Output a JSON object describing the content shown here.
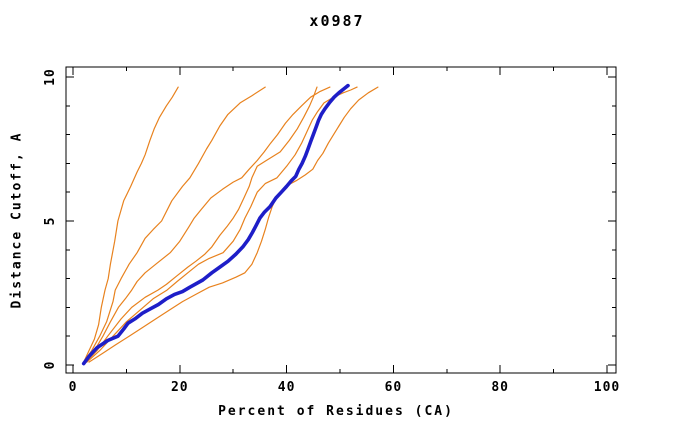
{
  "title": "x0987",
  "chart_data": {
    "type": "line",
    "title": "x0987",
    "xlabel": "Percent of Residues (CA)",
    "ylabel": "Distance Cutoff, A",
    "grid": false,
    "legend": null,
    "axes": {
      "x": {
        "range": [
          0,
          100
        ],
        "major": [
          0,
          20,
          40,
          60,
          80,
          100
        ],
        "minor": [
          10,
          30,
          50,
          70,
          90
        ]
      },
      "y": {
        "range": [
          0,
          10
        ],
        "major": [
          0,
          5,
          10
        ],
        "minor": [
          1,
          2,
          3,
          4,
          6,
          7,
          8,
          9
        ]
      }
    },
    "colors": {
      "alignment_orange": "#e8821e",
      "reference_blue": "#1e1ec8"
    },
    "series": [
      {
        "name": "orange-curve-1",
        "color": "#e8821e",
        "width": 1.2,
        "points": [
          [
            2,
            0.1
          ],
          [
            3,
            0.5
          ],
          [
            4,
            0.9
          ],
          [
            4.8,
            1.4
          ],
          [
            5.3,
            2.0
          ],
          [
            6,
            2.6
          ],
          [
            6.6,
            3.0
          ],
          [
            7,
            3.5
          ],
          [
            7.8,
            4.3
          ],
          [
            8.4,
            5.0
          ],
          [
            9.5,
            5.7
          ],
          [
            10.8,
            6.2
          ],
          [
            12,
            6.7
          ],
          [
            12.8,
            7.0
          ],
          [
            13.5,
            7.3
          ],
          [
            14.4,
            7.8
          ],
          [
            15.2,
            8.2
          ],
          [
            16.2,
            8.6
          ],
          [
            17.5,
            9.0
          ],
          [
            18.6,
            9.3
          ],
          [
            19.7,
            9.65
          ]
        ]
      },
      {
        "name": "orange-curve-2",
        "color": "#e8821e",
        "width": 1.2,
        "points": [
          [
            2,
            0.1
          ],
          [
            3.5,
            0.5
          ],
          [
            5,
            1.0
          ],
          [
            6.3,
            1.5
          ],
          [
            7.5,
            2.2
          ],
          [
            7.9,
            2.6
          ],
          [
            9,
            3.0
          ],
          [
            10.5,
            3.5
          ],
          [
            12,
            3.9
          ],
          [
            13.5,
            4.4
          ],
          [
            15,
            4.7
          ],
          [
            16.6,
            5.0
          ],
          [
            18.5,
            5.7
          ],
          [
            20.5,
            6.2
          ],
          [
            21.9,
            6.5
          ],
          [
            23.5,
            7.0
          ],
          [
            25,
            7.5
          ],
          [
            26,
            7.8
          ],
          [
            27.5,
            8.3
          ],
          [
            29,
            8.7
          ],
          [
            31.3,
            9.1
          ],
          [
            33.5,
            9.35
          ],
          [
            36,
            9.65
          ]
        ]
      },
      {
        "name": "orange-curve-3",
        "color": "#e8821e",
        "width": 1.2,
        "points": [
          [
            2.2,
            0.1
          ],
          [
            4,
            0.5
          ],
          [
            5.6,
            1.0
          ],
          [
            7,
            1.5
          ],
          [
            8.5,
            2.0
          ],
          [
            9.8,
            2.3
          ],
          [
            11,
            2.6
          ],
          [
            12,
            2.9
          ],
          [
            13.5,
            3.2
          ],
          [
            15.5,
            3.5
          ],
          [
            18.2,
            3.9
          ],
          [
            20,
            4.3
          ],
          [
            21.7,
            4.8
          ],
          [
            22.7,
            5.1
          ],
          [
            24,
            5.4
          ],
          [
            25.8,
            5.8
          ],
          [
            28,
            6.1
          ],
          [
            30,
            6.35
          ],
          [
            31.6,
            6.5
          ],
          [
            33,
            6.8
          ],
          [
            34.5,
            7.1
          ],
          [
            35.8,
            7.4
          ],
          [
            37,
            7.7
          ],
          [
            38.3,
            8.0
          ],
          [
            39.8,
            8.4
          ],
          [
            41.2,
            8.7
          ],
          [
            42.8,
            9.0
          ],
          [
            44.5,
            9.3
          ],
          [
            46.3,
            9.5
          ],
          [
            48.1,
            9.65
          ]
        ]
      },
      {
        "name": "orange-curve-4",
        "color": "#e8821e",
        "width": 1.2,
        "points": [
          [
            2.4,
            0.1
          ],
          [
            4.5,
            0.5
          ],
          [
            6.5,
            1.0
          ],
          [
            9,
            1.6
          ],
          [
            11,
            2.0
          ],
          [
            13.5,
            2.35
          ],
          [
            15.9,
            2.6
          ],
          [
            17.5,
            2.8
          ],
          [
            19.5,
            3.1
          ],
          [
            21.5,
            3.4
          ],
          [
            23,
            3.6
          ],
          [
            24.7,
            3.85
          ],
          [
            26,
            4.1
          ],
          [
            27.5,
            4.5
          ],
          [
            28.8,
            4.8
          ],
          [
            30,
            5.1
          ],
          [
            31,
            5.4
          ],
          [
            32,
            5.8
          ],
          [
            33,
            6.2
          ],
          [
            33.5,
            6.5
          ],
          [
            34.5,
            6.9
          ],
          [
            36.2,
            7.1
          ],
          [
            38.8,
            7.4
          ],
          [
            40.5,
            7.8
          ],
          [
            42,
            8.2
          ],
          [
            43.2,
            8.6
          ],
          [
            44.3,
            9.0
          ],
          [
            45,
            9.3
          ],
          [
            45.7,
            9.65
          ]
        ]
      },
      {
        "name": "orange-curve-5",
        "color": "#e8821e",
        "width": 1.2,
        "points": [
          [
            2.6,
            0.1
          ],
          [
            5,
            0.5
          ],
          [
            7.5,
            1.0
          ],
          [
            10,
            1.5
          ],
          [
            12.5,
            1.9
          ],
          [
            15,
            2.3
          ],
          [
            17.6,
            2.6
          ],
          [
            19.5,
            2.9
          ],
          [
            21.5,
            3.2
          ],
          [
            23.5,
            3.5
          ],
          [
            25.5,
            3.7
          ],
          [
            28.1,
            3.9
          ],
          [
            30,
            4.3
          ],
          [
            31.3,
            4.7
          ],
          [
            32.2,
            5.1
          ],
          [
            33.3,
            5.5
          ],
          [
            34.5,
            6.0
          ],
          [
            36,
            6.3
          ],
          [
            38.2,
            6.5
          ],
          [
            40,
            6.9
          ],
          [
            41.6,
            7.3
          ],
          [
            42.8,
            7.7
          ],
          [
            43.8,
            8.1
          ],
          [
            44.8,
            8.5
          ],
          [
            45.8,
            8.8
          ],
          [
            47,
            9.1
          ],
          [
            48.8,
            9.3
          ],
          [
            50.6,
            9.45
          ],
          [
            52,
            9.55
          ],
          [
            53.2,
            9.65
          ]
        ]
      },
      {
        "name": "orange-curve-6",
        "color": "#e8821e",
        "width": 1.2,
        "points": [
          [
            3,
            0.1
          ],
          [
            5.5,
            0.4
          ],
          [
            8,
            0.7
          ],
          [
            10.5,
            1.0
          ],
          [
            13,
            1.3
          ],
          [
            15.5,
            1.6
          ],
          [
            18,
            1.9
          ],
          [
            20.5,
            2.2
          ],
          [
            23,
            2.45
          ],
          [
            25.5,
            2.7
          ],
          [
            28,
            2.85
          ],
          [
            30.5,
            3.05
          ],
          [
            32.2,
            3.2
          ],
          [
            33.5,
            3.5
          ],
          [
            34.5,
            3.9
          ],
          [
            35.3,
            4.3
          ],
          [
            36,
            4.7
          ],
          [
            36.6,
            5.1
          ],
          [
            37.3,
            5.5
          ],
          [
            38.3,
            5.9
          ],
          [
            39.8,
            6.2
          ],
          [
            41.8,
            6.4
          ],
          [
            43.5,
            6.6
          ],
          [
            44.9,
            6.8
          ],
          [
            45.8,
            7.1
          ],
          [
            46.8,
            7.35
          ],
          [
            47.8,
            7.7
          ],
          [
            48.8,
            8.0
          ],
          [
            49.8,
            8.3
          ],
          [
            50.8,
            8.6
          ],
          [
            52,
            8.9
          ],
          [
            53.5,
            9.2
          ],
          [
            55.3,
            9.45
          ],
          [
            57.1,
            9.65
          ]
        ]
      },
      {
        "name": "blue-curve",
        "color": "#1e1ec8",
        "width": 3.6,
        "points": [
          [
            2,
            0.05
          ],
          [
            3,
            0.3
          ],
          [
            4.5,
            0.6
          ],
          [
            6.5,
            0.85
          ],
          [
            8.4,
            1.0
          ],
          [
            9.5,
            1.25
          ],
          [
            10.3,
            1.45
          ],
          [
            11.6,
            1.6
          ],
          [
            13,
            1.8
          ],
          [
            14.5,
            1.95
          ],
          [
            16,
            2.1
          ],
          [
            17.5,
            2.3
          ],
          [
            19,
            2.45
          ],
          [
            20.5,
            2.55
          ],
          [
            21.9,
            2.7
          ],
          [
            24.3,
            2.95
          ],
          [
            26,
            3.2
          ],
          [
            27.5,
            3.4
          ],
          [
            29,
            3.6
          ],
          [
            30.5,
            3.85
          ],
          [
            31.8,
            4.1
          ],
          [
            32.8,
            4.35
          ],
          [
            33.6,
            4.6
          ],
          [
            34.3,
            4.85
          ],
          [
            35,
            5.1
          ],
          [
            35.8,
            5.3
          ],
          [
            36.9,
            5.5
          ],
          [
            38,
            5.8
          ],
          [
            39,
            6.0
          ],
          [
            40,
            6.2
          ],
          [
            40.9,
            6.4
          ],
          [
            41.7,
            6.55
          ],
          [
            42.3,
            6.8
          ],
          [
            42.9,
            7.0
          ],
          [
            43.5,
            7.25
          ],
          [
            44,
            7.5
          ],
          [
            44.5,
            7.75
          ],
          [
            45,
            8.0
          ],
          [
            45.5,
            8.25
          ],
          [
            46,
            8.5
          ],
          [
            46.5,
            8.7
          ],
          [
            47.2,
            8.9
          ],
          [
            48,
            9.1
          ],
          [
            48.9,
            9.3
          ],
          [
            49.8,
            9.45
          ],
          [
            50.8,
            9.6
          ],
          [
            51.5,
            9.7
          ]
        ]
      }
    ]
  }
}
